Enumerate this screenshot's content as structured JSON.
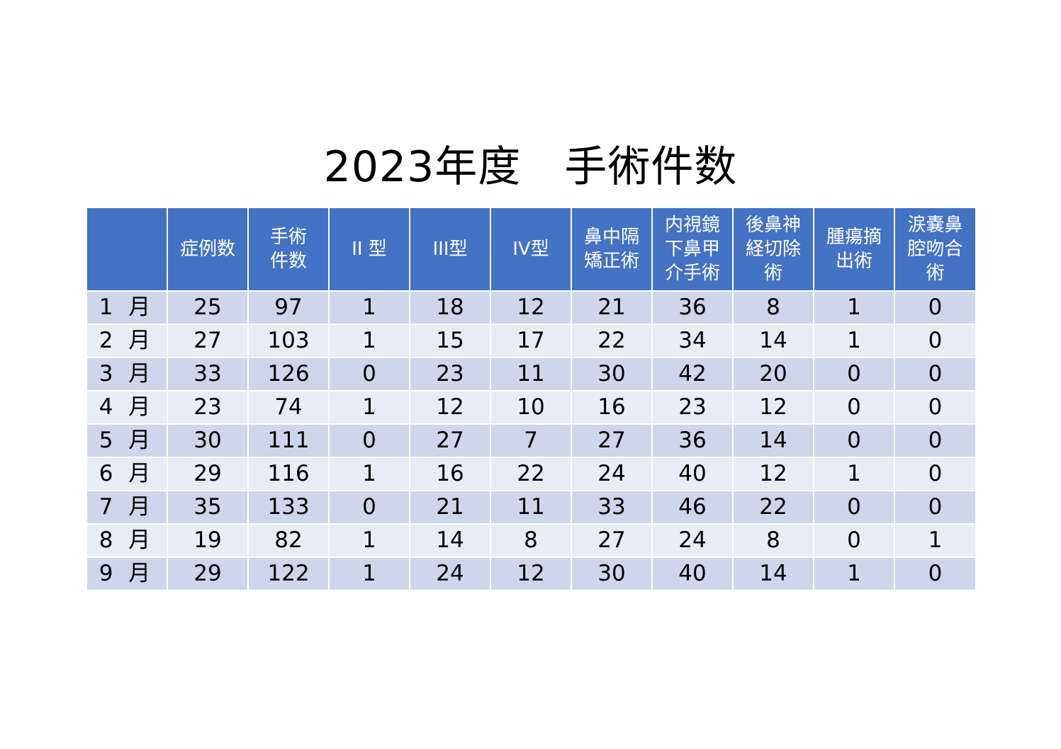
{
  "title": "2023年度　手術件数",
  "table": {
    "headers": [
      "",
      "症例数",
      "手術\n件数",
      "II 型",
      "III型",
      "IV型",
      "鼻中隔\n矯正術",
      "内視鏡\n下鼻甲\n介手術",
      "後鼻神\n経切除\n術",
      "腫瘍摘\n出術",
      "涙嚢鼻\n腔吻合\n術"
    ],
    "rows": [
      [
        "1 月",
        "25",
        "97",
        "1",
        "18",
        "12",
        "21",
        "36",
        "8",
        "1",
        "0"
      ],
      [
        "2 月",
        "27",
        "103",
        "1",
        "15",
        "17",
        "22",
        "34",
        "14",
        "1",
        "0"
      ],
      [
        "3 月",
        "33",
        "126",
        "0",
        "23",
        "11",
        "30",
        "42",
        "20",
        "0",
        "0"
      ],
      [
        "4 月",
        "23",
        "74",
        "1",
        "12",
        "10",
        "16",
        "23",
        "12",
        "0",
        "0"
      ],
      [
        "5 月",
        "30",
        "111",
        "0",
        "27",
        "7",
        "27",
        "36",
        "14",
        "0",
        "0"
      ],
      [
        "6 月",
        "29",
        "116",
        "1",
        "16",
        "22",
        "24",
        "40",
        "12",
        "1",
        "0"
      ],
      [
        "7 月",
        "35",
        "133",
        "0",
        "21",
        "11",
        "33",
        "46",
        "22",
        "0",
        "0"
      ],
      [
        "8 月",
        "19",
        "82",
        "1",
        "14",
        "8",
        "27",
        "24",
        "8",
        "0",
        "1"
      ],
      [
        "9 月",
        "29",
        "122",
        "1",
        "24",
        "12",
        "30",
        "40",
        "14",
        "1",
        "0"
      ]
    ]
  },
  "colors": {
    "header_bg": "#4472c4",
    "row_odd_bg": "#cfd5ea",
    "row_even_bg": "#e9ebf5"
  }
}
